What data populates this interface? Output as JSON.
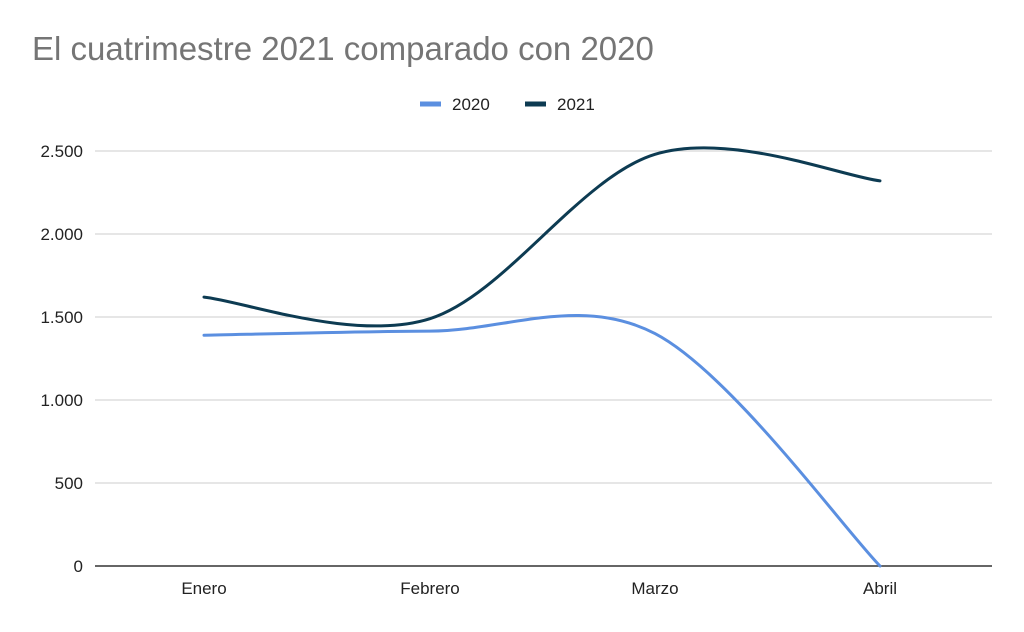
{
  "chart_data": {
    "type": "line",
    "title": "El cuatrimestre 2021 comparado con 2020",
    "xlabel": "",
    "ylabel": "",
    "categories": [
      "Enero",
      "Febrero",
      "Marzo",
      "Abril"
    ],
    "series": [
      {
        "name": "2020",
        "color": "#5b8fe0",
        "values": [
          1390,
          1415,
          1400,
          0
        ]
      },
      {
        "name": "2021",
        "color": "#0d3b52",
        "values": [
          1620,
          1490,
          2480,
          2320
        ]
      }
    ],
    "ylim": [
      0,
      2500
    ],
    "yticks": [
      0,
      500,
      1000,
      1500,
      2000,
      2500
    ],
    "ytick_labels": [
      "0",
      "500",
      "1.000",
      "1.500",
      "2.000",
      "2.500"
    ],
    "smooth": true,
    "grid": true,
    "legend": "top-center",
    "colors": {
      "grid": "#cccccc",
      "axis": "#333333",
      "title": "#757575"
    }
  }
}
